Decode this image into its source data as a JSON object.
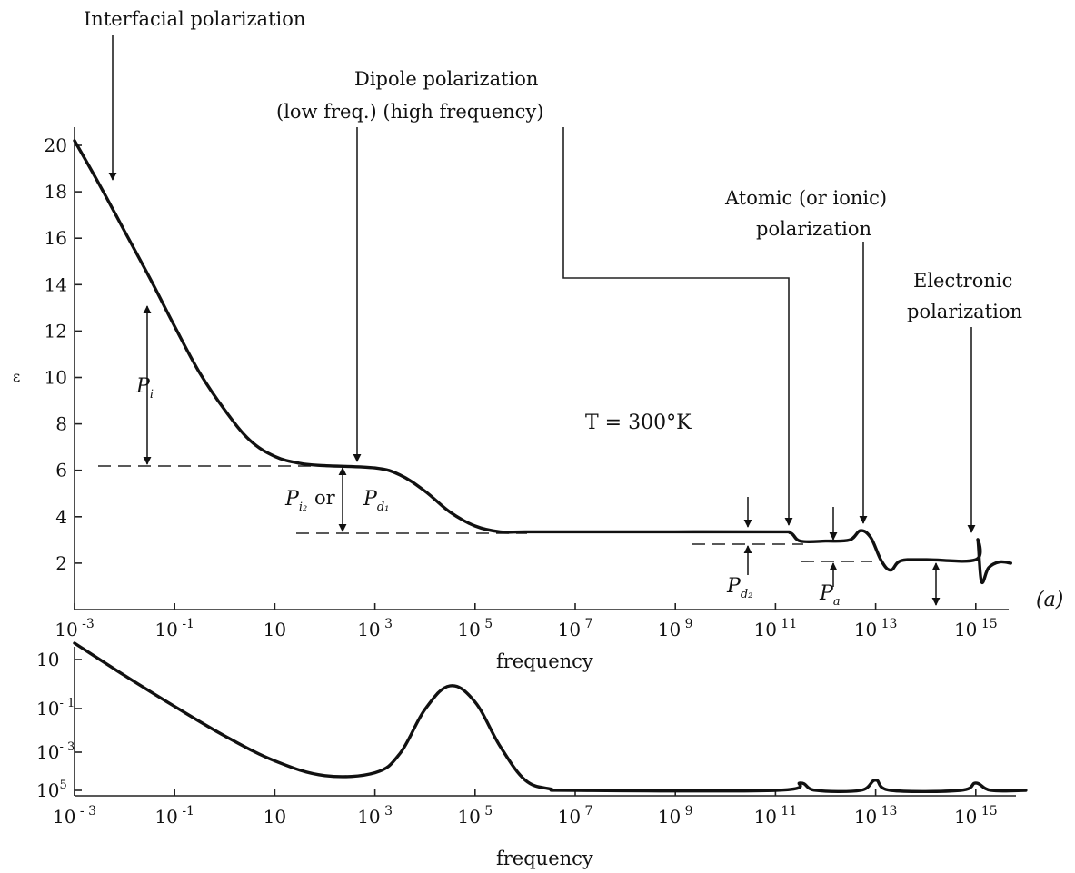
{
  "chart_data": [
    {
      "type": "line",
      "panel": "a",
      "panel_label": "(a)",
      "xlabel": "frequency",
      "ylabel": "ε",
      "x_scale": "log",
      "xlim": [
        0.001,
        10000000000000000
      ],
      "ylim": [
        0,
        20
      ],
      "y_ticks": [
        20,
        18,
        16,
        14,
        12,
        10,
        8,
        6,
        4,
        2
      ],
      "x_ticks": [
        0.001,
        0.1,
        10,
        1000,
        100000,
        10000000,
        1000000000,
        100000000000,
        10000000000000,
        1000000000000000
      ],
      "x_tick_labels": [
        {
          "base": "10",
          "exp": "-3"
        },
        {
          "base": "10",
          "exp": "-1"
        },
        {
          "base": "10",
          "exp": ""
        },
        {
          "base": "10",
          "exp": "3"
        },
        {
          "base": "10",
          "exp": "5"
        },
        {
          "base": "10",
          "exp": "7"
        },
        {
          "base": "10",
          "exp": "9"
        },
        {
          "base": "10",
          "exp": "11"
        },
        {
          "base": "10",
          "exp": "13"
        },
        {
          "base": "10",
          "exp": "15"
        }
      ],
      "points": [
        [
          0.001,
          20.2
        ],
        [
          0.00316,
          18.3
        ],
        [
          0.01,
          16.3
        ],
        [
          0.0316,
          14.3
        ],
        [
          0.1,
          12.2
        ],
        [
          0.316,
          10.2
        ],
        [
          1,
          8.6
        ],
        [
          3.16,
          7.3
        ],
        [
          10,
          6.6
        ],
        [
          31.6,
          6.3
        ],
        [
          100,
          6.2
        ],
        [
          1000,
          6.1
        ],
        [
          3160,
          5.8
        ],
        [
          10000,
          5.1
        ],
        [
          31600,
          4.2
        ],
        [
          100000,
          3.6
        ],
        [
          316000,
          3.35
        ],
        [
          1000000,
          3.35
        ],
        [
          10000000,
          3.35
        ],
        [
          1000000000,
          3.35
        ],
        [
          100000000000,
          3.35
        ],
        [
          200000000000,
          3.3
        ],
        [
          316000000000,
          2.95
        ],
        [
          1000000000000,
          2.95
        ],
        [
          3000000000000,
          3.0
        ],
        [
          5000000000000,
          3.4
        ],
        [
          8000000000000,
          3.1
        ],
        [
          13000000000000,
          2.1
        ],
        [
          20000000000000,
          1.7
        ],
        [
          32000000000000,
          2.1
        ],
        [
          100000000000000,
          2.15
        ],
        [
          1000000000000000,
          2.15
        ],
        [
          1100000000000000,
          3.0
        ],
        [
          1300000000000000,
          1.2
        ],
        [
          1800000000000000,
          1.8
        ],
        [
          3000000000000000,
          2.05
        ],
        [
          5000000000000000,
          2.0
        ]
      ],
      "annotations": [
        {
          "text": "Interfacial polarization"
        },
        {
          "text": "Dipole polarization"
        },
        {
          "text": "(low freq.) (high frequency)"
        },
        {
          "text": "Atomic (or ionic)"
        },
        {
          "text": "polarization"
        },
        {
          "text": "Electronic"
        },
        {
          "text": "polarization"
        },
        {
          "text": "T = 300°K"
        },
        {
          "text": "or"
        }
      ],
      "level_labels": [
        {
          "symbol": "P",
          "sub": "i"
        },
        {
          "symbol": "P",
          "sub": "i₂"
        },
        {
          "symbol": "P",
          "sub": "d₁"
        },
        {
          "symbol": "P",
          "sub": "d₂"
        },
        {
          "symbol": "P",
          "sub": "a"
        }
      ]
    },
    {
      "type": "line",
      "panel": "b",
      "xlabel": "frequency",
      "x_scale": "log",
      "y_scale": "log",
      "xlim": [
        0.001,
        10000000000000000
      ],
      "y_tick_labels": [
        {
          "base": "10",
          "exp": ""
        },
        {
          "base": "10",
          "exp": "- 1"
        },
        {
          "base": "10",
          "exp": "- 3"
        },
        {
          "base": "10",
          "exp": "5"
        }
      ],
      "x_tick_labels": [
        {
          "base": "10",
          "exp": "- 3"
        },
        {
          "base": "10",
          "exp": "-1"
        },
        {
          "base": "10",
          "exp": ""
        },
        {
          "base": "10",
          "exp": "3"
        },
        {
          "base": "10",
          "exp": "5"
        },
        {
          "base": "10",
          "exp": "7"
        },
        {
          "base": "10",
          "exp": "9"
        },
        {
          "base": "10",
          "exp": "11"
        },
        {
          "base": "10",
          "exp": "13"
        },
        {
          "base": "10",
          "exp": "15"
        }
      ],
      "points_relative_level": [
        [
          0.001,
          1.0
        ],
        [
          0.01,
          0.78
        ],
        [
          0.1,
          0.57
        ],
        [
          1,
          0.37
        ],
        [
          10,
          0.2
        ],
        [
          100,
          0.1
        ],
        [
          1000,
          0.12
        ],
        [
          3160,
          0.25
        ],
        [
          10000,
          0.55
        ],
        [
          31600,
          0.71
        ],
        [
          100000,
          0.6
        ],
        [
          316000,
          0.3
        ],
        [
          1000000,
          0.07
        ],
        [
          3160000,
          0.01
        ],
        [
          10000000,
          0.0
        ],
        [
          100000000000,
          0.0
        ],
        [
          316000000000,
          0.05
        ],
        [
          631000000000,
          0.0
        ],
        [
          5000000000000,
          0.0
        ],
        [
          10000000000000,
          0.07
        ],
        [
          20000000000000,
          0.0
        ],
        [
          500000000000000,
          0.0
        ],
        [
          1000000000000000,
          0.05
        ],
        [
          2000000000000000,
          0.0
        ],
        [
          10000000000000000,
          0.0
        ]
      ]
    }
  ]
}
